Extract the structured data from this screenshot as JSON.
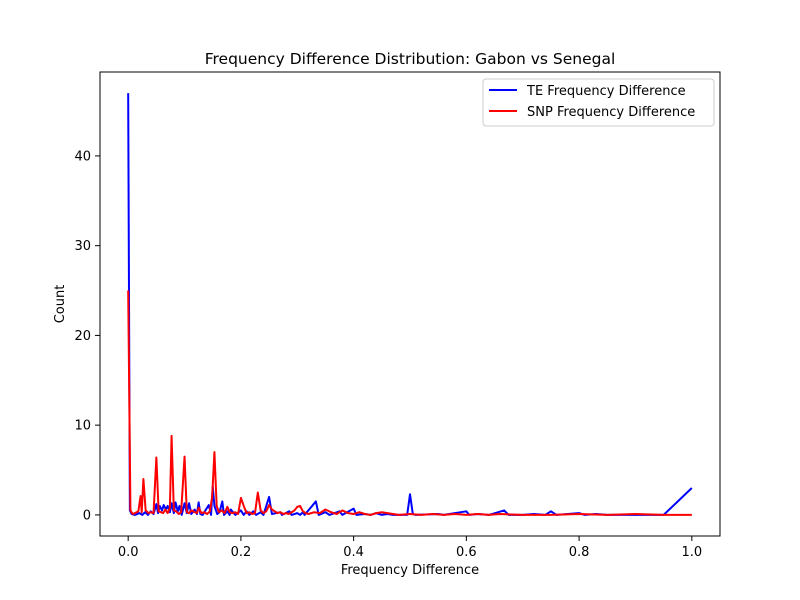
{
  "chart_data": {
    "type": "line",
    "title": "Frequency Difference Distribution: Gabon vs Senegal",
    "xlabel": "Frequency Difference",
    "ylabel": "Count",
    "xlim": [
      -0.05,
      1.05
    ],
    "ylim": [
      -2.35,
      49.35
    ],
    "x_ticks": [
      0.0,
      0.2,
      0.4,
      0.6,
      0.8,
      1.0
    ],
    "x_tick_labels": [
      "0.0",
      "0.2",
      "0.4",
      "0.6",
      "0.8",
      "1.0"
    ],
    "y_ticks": [
      0,
      10,
      20,
      30,
      40
    ],
    "y_tick_labels": [
      "0",
      "10",
      "20",
      "30",
      "40"
    ],
    "grid": false,
    "legend_position": "top-right",
    "series": [
      {
        "name": "TE Frequency Difference",
        "color": "#0000ff",
        "points": [
          [
            0.0,
            47
          ],
          [
            0.003,
            0.5
          ],
          [
            0.006,
            0.1
          ],
          [
            0.012,
            0.0
          ],
          [
            0.02,
            0.2
          ],
          [
            0.025,
            0.0
          ],
          [
            0.03,
            0.3
          ],
          [
            0.035,
            0.0
          ],
          [
            0.04,
            0.4
          ],
          [
            0.045,
            0.1
          ],
          [
            0.05,
            1.2
          ],
          [
            0.053,
            0.2
          ],
          [
            0.056,
            1.0
          ],
          [
            0.06,
            0.5
          ],
          [
            0.063,
            1.1
          ],
          [
            0.067,
            0.6
          ],
          [
            0.07,
            1.0
          ],
          [
            0.074,
            0.3
          ],
          [
            0.077,
            1.3
          ],
          [
            0.081,
            0.2
          ],
          [
            0.084,
            1.4
          ],
          [
            0.088,
            0.4
          ],
          [
            0.091,
            1.0
          ],
          [
            0.095,
            0.0
          ],
          [
            0.1,
            1.3
          ],
          [
            0.104,
            0.2
          ],
          [
            0.108,
            1.3
          ],
          [
            0.112,
            0.1
          ],
          [
            0.118,
            0.6
          ],
          [
            0.122,
            0.1
          ],
          [
            0.125,
            1.4
          ],
          [
            0.128,
            0.1
          ],
          [
            0.132,
            0.0
          ],
          [
            0.137,
            0.5
          ],
          [
            0.143,
            1.1
          ],
          [
            0.147,
            0.0
          ],
          [
            0.15,
            3.2
          ],
          [
            0.153,
            1.0
          ],
          [
            0.158,
            0.1
          ],
          [
            0.162,
            0.3
          ],
          [
            0.167,
            1.5
          ],
          [
            0.17,
            0.0
          ],
          [
            0.176,
            0.4
          ],
          [
            0.18,
            0.0
          ],
          [
            0.182,
            0.6
          ],
          [
            0.19,
            0.0
          ],
          [
            0.2,
            0.5
          ],
          [
            0.205,
            0.0
          ],
          [
            0.21,
            0.4
          ],
          [
            0.215,
            0.0
          ],
          [
            0.222,
            0.4
          ],
          [
            0.227,
            0.0
          ],
          [
            0.235,
            0.3
          ],
          [
            0.24,
            0.0
          ],
          [
            0.25,
            2.0
          ],
          [
            0.255,
            0.1
          ],
          [
            0.27,
            0.3
          ],
          [
            0.273,
            0.0
          ],
          [
            0.286,
            0.4
          ],
          [
            0.29,
            0.0
          ],
          [
            0.3,
            0.2
          ],
          [
            0.305,
            0.0
          ],
          [
            0.31,
            0.3
          ],
          [
            0.313,
            0.0
          ],
          [
            0.333,
            1.5
          ],
          [
            0.338,
            0.0
          ],
          [
            0.35,
            0.3
          ],
          [
            0.357,
            0.0
          ],
          [
            0.375,
            0.4
          ],
          [
            0.38,
            0.0
          ],
          [
            0.4,
            0.7
          ],
          [
            0.405,
            0.0
          ],
          [
            0.42,
            0.1
          ],
          [
            0.43,
            0.0
          ],
          [
            0.44,
            0.2
          ],
          [
            0.45,
            0.0
          ],
          [
            0.46,
            0.1
          ],
          [
            0.47,
            0.0
          ],
          [
            0.495,
            0.0
          ],
          [
            0.5,
            2.3
          ],
          [
            0.505,
            0.1
          ],
          [
            0.51,
            0.0
          ],
          [
            0.55,
            0.1
          ],
          [
            0.56,
            0.0
          ],
          [
            0.6,
            0.4
          ],
          [
            0.605,
            0.0
          ],
          [
            0.62,
            0.1
          ],
          [
            0.64,
            0.0
          ],
          [
            0.667,
            0.5
          ],
          [
            0.675,
            0.0
          ],
          [
            0.7,
            0.0
          ],
          [
            0.72,
            0.1
          ],
          [
            0.74,
            0.0
          ],
          [
            0.75,
            0.4
          ],
          [
            0.76,
            0.0
          ],
          [
            0.8,
            0.2
          ],
          [
            0.81,
            0.0
          ],
          [
            0.83,
            0.1
          ],
          [
            0.85,
            0.0
          ],
          [
            0.87,
            0.0
          ],
          [
            0.95,
            0.0
          ],
          [
            1.0,
            3.0
          ]
        ]
      },
      {
        "name": "SNP Frequency Difference",
        "color": "#ff0000",
        "points": [
          [
            0.0,
            25
          ],
          [
            0.004,
            0.5
          ],
          [
            0.008,
            0.1
          ],
          [
            0.012,
            0.2
          ],
          [
            0.018,
            0.4
          ],
          [
            0.022,
            2.1
          ],
          [
            0.024,
            0.3
          ],
          [
            0.027,
            4.0
          ],
          [
            0.031,
            0.5
          ],
          [
            0.036,
            0.2
          ],
          [
            0.04,
            0.3
          ],
          [
            0.045,
            0.2
          ],
          [
            0.05,
            6.4
          ],
          [
            0.054,
            0.4
          ],
          [
            0.058,
            0.3
          ],
          [
            0.062,
            0.2
          ],
          [
            0.066,
            0.6
          ],
          [
            0.07,
            0.2
          ],
          [
            0.074,
            0.8
          ],
          [
            0.077,
            8.8
          ],
          [
            0.081,
            0.5
          ],
          [
            0.085,
            0.4
          ],
          [
            0.09,
            0.1
          ],
          [
            0.094,
            0.3
          ],
          [
            0.1,
            6.5
          ],
          [
            0.104,
            0.3
          ],
          [
            0.108,
            0.2
          ],
          [
            0.112,
            0.5
          ],
          [
            0.118,
            0.3
          ],
          [
            0.122,
            0.2
          ],
          [
            0.125,
            0.8
          ],
          [
            0.13,
            0.2
          ],
          [
            0.135,
            0.3
          ],
          [
            0.14,
            0.1
          ],
          [
            0.145,
            0.4
          ],
          [
            0.149,
            2.0
          ],
          [
            0.153,
            7.0
          ],
          [
            0.157,
            1.0
          ],
          [
            0.161,
            0.3
          ],
          [
            0.166,
            0.5
          ],
          [
            0.171,
            0.2
          ],
          [
            0.176,
            0.9
          ],
          [
            0.18,
            0.3
          ],
          [
            0.185,
            0.2
          ],
          [
            0.19,
            0.3
          ],
          [
            0.195,
            0.1
          ],
          [
            0.2,
            1.9
          ],
          [
            0.205,
            1.0
          ],
          [
            0.21,
            0.2
          ],
          [
            0.215,
            0.3
          ],
          [
            0.22,
            0.1
          ],
          [
            0.225,
            0.2
          ],
          [
            0.23,
            2.5
          ],
          [
            0.235,
            0.5
          ],
          [
            0.24,
            0.2
          ],
          [
            0.245,
            0.4
          ],
          [
            0.25,
            1.1
          ],
          [
            0.255,
            0.6
          ],
          [
            0.26,
            0.4
          ],
          [
            0.265,
            0.2
          ],
          [
            0.27,
            0.3
          ],
          [
            0.275,
            0.1
          ],
          [
            0.28,
            0.2
          ],
          [
            0.285,
            0.1
          ],
          [
            0.29,
            0.3
          ],
          [
            0.295,
            0.5
          ],
          [
            0.3,
            0.9
          ],
          [
            0.305,
            1.0
          ],
          [
            0.31,
            0.4
          ],
          [
            0.315,
            0.2
          ],
          [
            0.32,
            0.1
          ],
          [
            0.33,
            0.3
          ],
          [
            0.34,
            0.2
          ],
          [
            0.35,
            0.6
          ],
          [
            0.36,
            0.3
          ],
          [
            0.37,
            0.1
          ],
          [
            0.38,
            0.5
          ],
          [
            0.39,
            0.2
          ],
          [
            0.4,
            0.1
          ],
          [
            0.41,
            0.3
          ],
          [
            0.42,
            0.1
          ],
          [
            0.43,
            0.0
          ],
          [
            0.44,
            0.2
          ],
          [
            0.45,
            0.3
          ],
          [
            0.46,
            0.2
          ],
          [
            0.47,
            0.1
          ],
          [
            0.48,
            0.0
          ],
          [
            0.5,
            0.1
          ],
          [
            0.52,
            0.0
          ],
          [
            0.54,
            0.1
          ],
          [
            0.56,
            0.0
          ],
          [
            0.58,
            0.1
          ],
          [
            0.6,
            0.0
          ],
          [
            0.62,
            0.1
          ],
          [
            0.64,
            0.0
          ],
          [
            0.66,
            0.1
          ],
          [
            0.7,
            0.0
          ],
          [
            0.75,
            0.0
          ],
          [
            0.8,
            0.1
          ],
          [
            0.85,
            0.0
          ],
          [
            0.9,
            0.1
          ],
          [
            0.95,
            0.0
          ],
          [
            1.0,
            0.0
          ]
        ]
      }
    ]
  }
}
